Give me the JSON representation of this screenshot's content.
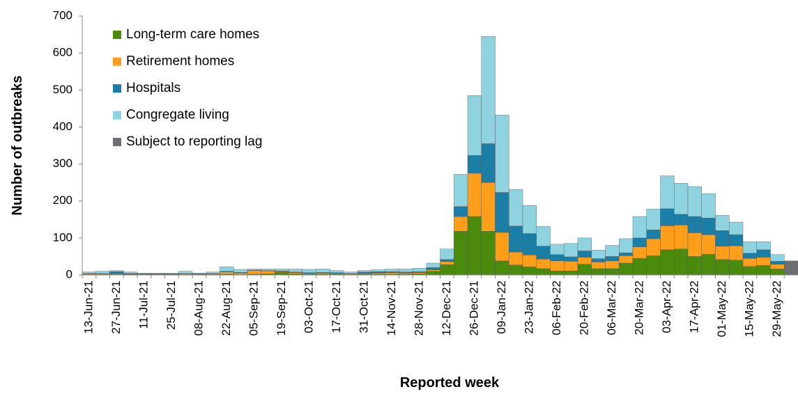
{
  "chart_data": {
    "type": "bar",
    "stacked": true,
    "x_label": "Reported week",
    "y_label": "Number of outbreaks",
    "categories": [
      "13-Jun-21",
      null,
      "27-Jun-21",
      null,
      "11-Jul-21",
      null,
      "25-Jul-21",
      null,
      "08-Aug-21",
      null,
      "22-Aug-21",
      null,
      "05-Sep-21",
      null,
      "19-Sep-21",
      null,
      "03-Oct-21",
      null,
      "17-Oct-21",
      null,
      "31-Oct-21",
      null,
      "14-Nov-21",
      null,
      "28-Nov-21",
      null,
      "12-Dec-21",
      null,
      "26-Dec-21",
      null,
      "09-Jan-22",
      null,
      "23-Jan-22",
      null,
      "06-Feb-22",
      null,
      "20-Feb-22",
      null,
      "06-Mar-22",
      null,
      "20-Mar-22",
      null,
      "03-Apr-22",
      null,
      "17-Apr-22",
      null,
      "01-May-22",
      null,
      "15-May-22",
      null,
      "29-May-22",
      null
    ],
    "series": [
      {
        "name": "Long-term care homes",
        "color": "#4a8a0c",
        "values": [
          1,
          1,
          1,
          1,
          1,
          1,
          1,
          1,
          1,
          1,
          2,
          1,
          2,
          3,
          8,
          3,
          2,
          2,
          2,
          1,
          2,
          2,
          2,
          2,
          3,
          10,
          28,
          118,
          158,
          118,
          38,
          27,
          22,
          17,
          11,
          11,
          29,
          17,
          17,
          32,
          45,
          52,
          68,
          70,
          50,
          56,
          42,
          40,
          23,
          26,
          16,
          0
        ]
      },
      {
        "name": "Retirement homes",
        "color": "#ff9e1b",
        "values": [
          2,
          2,
          2,
          1,
          1,
          1,
          1,
          2,
          1,
          2,
          6,
          4,
          10,
          8,
          2,
          3,
          2,
          3,
          2,
          2,
          2,
          3,
          4,
          3,
          3,
          4,
          8,
          40,
          117,
          132,
          77,
          35,
          32,
          26,
          27,
          26,
          19,
          18,
          21,
          20,
          31,
          46,
          65,
          65,
          64,
          53,
          36,
          39,
          22,
          22,
          13,
          0
        ]
      },
      {
        "name": "Hospitals",
        "color": "#1a7ea6",
        "values": [
          1,
          1,
          6,
          2,
          1,
          1,
          1,
          1,
          1,
          1,
          2,
          2,
          1,
          1,
          1,
          2,
          2,
          2,
          2,
          1,
          4,
          4,
          3,
          3,
          3,
          6,
          6,
          27,
          48,
          105,
          108,
          70,
          58,
          35,
          17,
          12,
          17,
          9,
          12,
          8,
          24,
          24,
          46,
          29,
          44,
          45,
          42,
          30,
          14,
          20,
          8,
          0
        ]
      },
      {
        "name": "Congregate living",
        "color": "#8fd3e0",
        "values": [
          4,
          6,
          3,
          4,
          2,
          2,
          2,
          6,
          2,
          4,
          12,
          8,
          3,
          4,
          5,
          8,
          9,
          9,
          6,
          4,
          4,
          5,
          7,
          8,
          9,
          12,
          28,
          87,
          162,
          290,
          209,
          99,
          76,
          53,
          28,
          36,
          35,
          23,
          30,
          38,
          58,
          56,
          89,
          84,
          81,
          66,
          41,
          34,
          31,
          22,
          18,
          0
        ]
      },
      {
        "name": "Subject to reporting lag",
        "color": "#6d6e71",
        "values": [
          0,
          0,
          0,
          0,
          0,
          0,
          0,
          0,
          0,
          0,
          0,
          0,
          0,
          0,
          0,
          0,
          0,
          0,
          0,
          0,
          0,
          0,
          0,
          0,
          0,
          0,
          0,
          0,
          0,
          0,
          0,
          0,
          0,
          0,
          0,
          0,
          0,
          0,
          0,
          0,
          0,
          0,
          0,
          0,
          0,
          0,
          0,
          0,
          0,
          0,
          0,
          38
        ]
      }
    ],
    "ylim": [
      0,
      700
    ],
    "yticks": [
      0,
      100,
      200,
      300,
      400,
      500,
      600,
      700
    ],
    "legend": "upper left",
    "grid": false
  }
}
